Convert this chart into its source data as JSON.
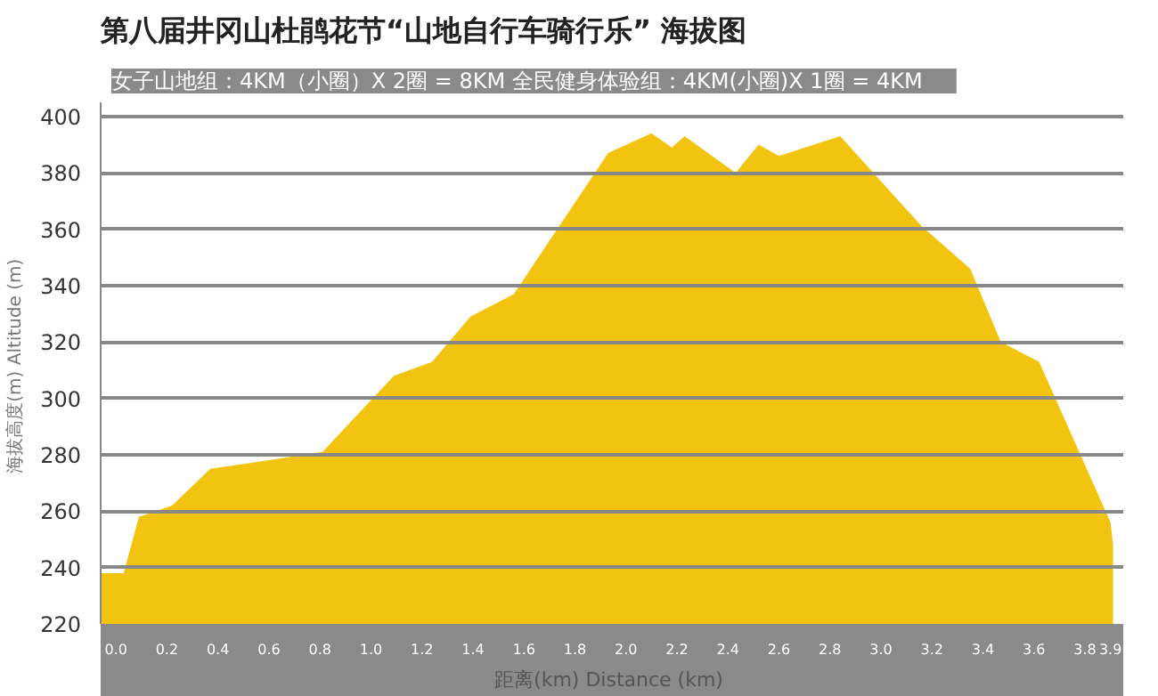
{
  "chart_data": {
    "type": "area",
    "title": "第八届井冈山杜鹃花节“山地自行车骑行乐”    海拔图",
    "subtitle": "女子山地组：4KM（小圈）X 2圈 = 8KM      全民健身体验组：4KM(小圈)X 1圈 = 4KM",
    "xlabel": "距离(km)  Distance (km)",
    "ylabel": "海拔高度(m)  Altitude (m)",
    "x": [
      -0.06,
      0.03,
      0.09,
      0.22,
      0.37,
      0.52,
      0.81,
      1.09,
      1.24,
      1.39,
      1.56,
      1.93,
      2.1,
      2.18,
      2.23,
      2.43,
      2.52,
      2.6,
      2.84,
      3.16,
      3.35,
      3.47,
      3.62,
      3.9,
      3.91
    ],
    "series": [
      {
        "color": "#f2c40f",
        "values": [
          238,
          238,
          258,
          262,
          275,
          277,
          281,
          308,
          313,
          329,
          337,
          387,
          394,
          389,
          393,
          380,
          390,
          386,
          393,
          361,
          346,
          320,
          313,
          256,
          248
        ]
      }
    ],
    "xlim": [
      -0.06,
      3.95
    ],
    "ylim": [
      220,
      405
    ],
    "xticks": [
      {
        "value": 0,
        "label": "0.0"
      },
      0.2,
      0.4,
      0.6,
      0.8,
      {
        "value": 1,
        "label": "1.0"
      },
      1.2,
      1.4,
      1.6,
      1.8,
      {
        "value": 2,
        "label": "2.0"
      },
      2.2,
      2.4,
      2.6,
      2.8,
      {
        "value": 3,
        "label": "3.0"
      },
      3.2,
      3.4,
      3.6,
      3.8,
      3.9
    ],
    "yticks": [
      220,
      240,
      260,
      280,
      300,
      320,
      340,
      360,
      380,
      400
    ],
    "grid": "y"
  }
}
